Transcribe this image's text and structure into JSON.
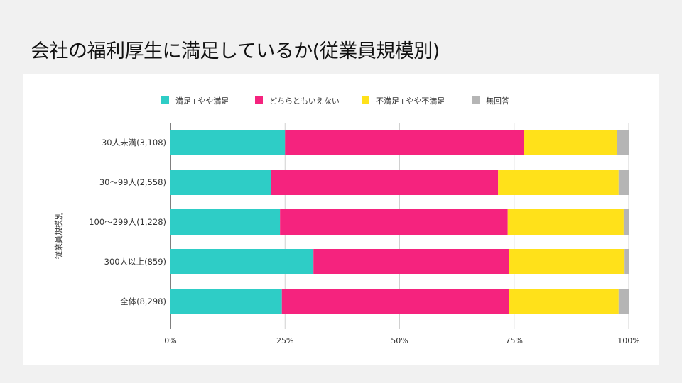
{
  "page": {
    "title": "会社の福利厚生に満足しているか(従業員規模別)"
  },
  "chart_data": {
    "type": "bar",
    "orientation": "horizontal",
    "stacked": "percent",
    "title": "会社の福利厚生に満足しているか(従業員規模別)",
    "ylabel": "従業員規模別",
    "xlabel": "",
    "xlim": [
      0,
      100
    ],
    "x_ticks": [
      "0%",
      "25%",
      "50%",
      "75%",
      "100%"
    ],
    "x_tick_values": [
      0,
      25,
      50,
      75,
      100
    ],
    "grid": true,
    "legend_position": "top",
    "categories": [
      "30人未満(3,108)",
      "30～99人(2,558)",
      "100～299人(1,228)",
      "300人以上(859)",
      "全体(8,298)"
    ],
    "series": [
      {
        "name": "満足+やや満足",
        "color": "#2ecdc6",
        "values": [
          25.0,
          22.0,
          23.9,
          31.2,
          24.3
        ]
      },
      {
        "name": "どちらともいえない",
        "color": "#f5237e",
        "values": [
          52.2,
          49.5,
          49.7,
          42.6,
          49.5
        ]
      },
      {
        "name": "不満足+やや不満足",
        "color": "#ffe11a",
        "values": [
          20.3,
          26.3,
          25.3,
          25.3,
          24.0
        ]
      },
      {
        "name": "無回答",
        "color": "#b5b5b5",
        "values": [
          2.5,
          2.2,
          1.1,
          0.9,
          2.2
        ]
      }
    ]
  }
}
